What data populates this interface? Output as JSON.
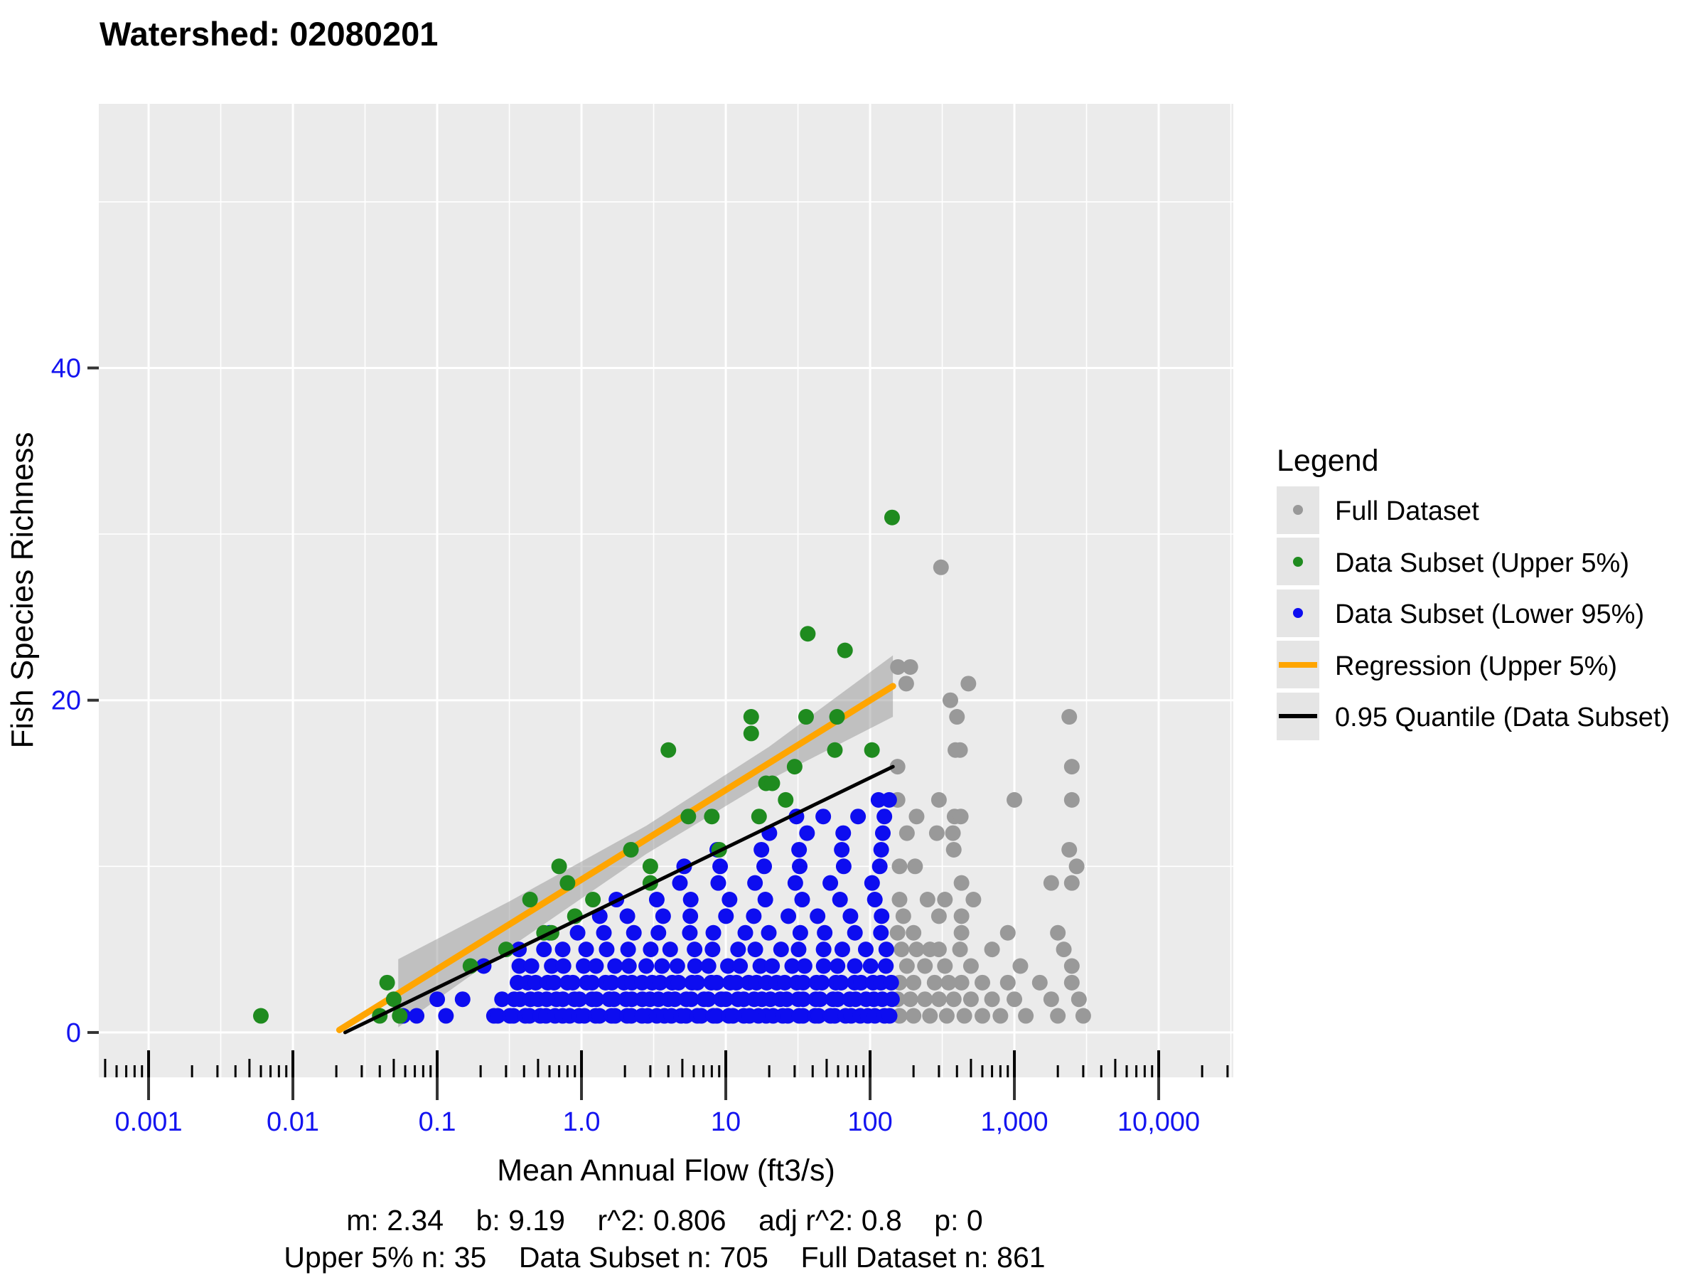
{
  "header": {
    "title": "Watershed: 02080201"
  },
  "legend": {
    "title": "Legend",
    "items": [
      {
        "label": "Full Dataset",
        "type": "point",
        "color": "#999999"
      },
      {
        "label": "Data Subset (Upper 5%)",
        "type": "point",
        "color": "#1F8B1F"
      },
      {
        "label": "Data Subset (Lower 95%)",
        "type": "point",
        "color": "#0D0DF0"
      },
      {
        "label": "Regression (Upper 5%)",
        "type": "line",
        "color": "#FFA500"
      },
      {
        "label": "0.95 Quantile (Data Subset)",
        "type": "line",
        "color": "#000000"
      }
    ],
    "key_background": "#E5E5E5"
  },
  "footer": {
    "stats_line1": "m: 2.34    b: 9.19    r^2: 0.806    adj r^2: 0.8    p: 0",
    "stats_line2": "Upper 5% n: 35    Data Subset n: 705    Full Dataset n: 861"
  },
  "chart_data": {
    "type": "scatter",
    "title": "Watershed: 02080201",
    "xlabel": "Mean Annual Flow (ft3/s)",
    "ylabel": "Fish Species Richness",
    "x_scale": "log10",
    "x_range_log": [
      -3.345,
      4.517
    ],
    "y_range": [
      -2.7,
      55.9
    ],
    "x_ticks": [
      {
        "v": 0.001,
        "label": "0.001"
      },
      {
        "v": 0.01,
        "label": "0.01"
      },
      {
        "v": 0.1,
        "label": "0.1"
      },
      {
        "v": 1,
        "label": "1.0"
      },
      {
        "v": 10,
        "label": "10"
      },
      {
        "v": 100,
        "label": "100"
      },
      {
        "v": 1000,
        "label": "1,000"
      },
      {
        "v": 10000,
        "label": "10,000"
      }
    ],
    "y_ticks": [
      {
        "v": 0,
        "label": "0"
      },
      {
        "v": 20,
        "label": "20"
      },
      {
        "v": 40,
        "label": "40"
      }
    ],
    "y_minor": [
      10,
      30,
      50
    ],
    "panel_color": "#EBEBEB",
    "grid_color": "#FFFFFF",
    "axis_text_color": "#1414F0",
    "series": [
      {
        "name": "Full Dataset",
        "color": "#999999",
        "points": [
          [
            310,
            28
          ],
          [
            156,
            22
          ],
          [
            190,
            22
          ],
          [
            178,
            21
          ],
          [
            480,
            21
          ],
          [
            360,
            20
          ],
          [
            400,
            19
          ],
          [
            2400,
            19
          ],
          [
            390,
            17
          ],
          [
            420,
            17
          ],
          [
            155,
            16
          ],
          [
            2500,
            16
          ],
          [
            155,
            14
          ],
          [
            300,
            14
          ],
          [
            1000,
            14
          ],
          [
            2500,
            14
          ],
          [
            210,
            13
          ],
          [
            385,
            13
          ],
          [
            425,
            13
          ],
          [
            180,
            12
          ],
          [
            290,
            12
          ],
          [
            375,
            12
          ],
          [
            380,
            11
          ],
          [
            2400,
            11
          ],
          [
            160,
            10
          ],
          [
            205,
            10
          ],
          [
            2700,
            10
          ],
          [
            430,
            9
          ],
          [
            1800,
            9
          ],
          [
            2500,
            9
          ],
          [
            160,
            8
          ],
          [
            250,
            8
          ],
          [
            330,
            8
          ],
          [
            520,
            8
          ],
          [
            170,
            7
          ],
          [
            300,
            7
          ],
          [
            430,
            7
          ],
          [
            155,
            6
          ],
          [
            200,
            6
          ],
          [
            430,
            6
          ],
          [
            900,
            6
          ],
          [
            2000,
            6
          ],
          [
            165,
            5
          ],
          [
            210,
            5
          ],
          [
            260,
            5
          ],
          [
            300,
            5
          ],
          [
            420,
            5
          ],
          [
            700,
            5
          ],
          [
            2200,
            5
          ],
          [
            180,
            4
          ],
          [
            240,
            4
          ],
          [
            330,
            4
          ],
          [
            500,
            4
          ],
          [
            1100,
            4
          ],
          [
            2500,
            4
          ],
          [
            160,
            3
          ],
          [
            200,
            3
          ],
          [
            280,
            3
          ],
          [
            350,
            3
          ],
          [
            430,
            3
          ],
          [
            600,
            3
          ],
          [
            900,
            3
          ],
          [
            1500,
            3
          ],
          [
            2500,
            3
          ],
          [
            155,
            2
          ],
          [
            190,
            2
          ],
          [
            240,
            2
          ],
          [
            300,
            2
          ],
          [
            380,
            2
          ],
          [
            500,
            2
          ],
          [
            700,
            2
          ],
          [
            1000,
            2
          ],
          [
            1800,
            2
          ],
          [
            2800,
            2
          ],
          [
            160,
            1
          ],
          [
            200,
            1
          ],
          [
            260,
            1
          ],
          [
            340,
            1
          ],
          [
            450,
            1
          ],
          [
            600,
            1
          ],
          [
            800,
            1
          ],
          [
            1200,
            1
          ],
          [
            2000,
            1
          ],
          [
            3000,
            1
          ]
        ]
      },
      {
        "name": "Data Subset (Upper 5%)",
        "color": "#1F8B1F",
        "points": [
          [
            0.006,
            1
          ],
          [
            0.04,
            1
          ],
          [
            0.045,
            3
          ],
          [
            0.05,
            2
          ],
          [
            0.055,
            1
          ],
          [
            0.17,
            4
          ],
          [
            0.3,
            5
          ],
          [
            0.44,
            8
          ],
          [
            0.55,
            6
          ],
          [
            0.62,
            6
          ],
          [
            0.7,
            10
          ],
          [
            0.8,
            9
          ],
          [
            0.9,
            7
          ],
          [
            1.2,
            8
          ],
          [
            2.2,
            11
          ],
          [
            3,
            9
          ],
          [
            3,
            10
          ],
          [
            4,
            17
          ],
          [
            5.5,
            13
          ],
          [
            8,
            13
          ],
          [
            9,
            11
          ],
          [
            15,
            18
          ],
          [
            15,
            19
          ],
          [
            17,
            13
          ],
          [
            19,
            15
          ],
          [
            21,
            15
          ],
          [
            26,
            14
          ],
          [
            30,
            16
          ],
          [
            36,
            19
          ],
          [
            37,
            24
          ],
          [
            57,
            17
          ],
          [
            59,
            19
          ],
          [
            67,
            23
          ],
          [
            103,
            17
          ],
          [
            142,
            31
          ]
        ]
      },
      {
        "name": "Data Subset (Lower 95%)",
        "color": "#0D0DF0",
        "rows": [
          {
            "y": 1,
            "x1": 0.24,
            "x2": 140,
            "n": 52
          },
          {
            "y": 2,
            "x1": 0.29,
            "x2": 140,
            "n": 46
          },
          {
            "y": 3,
            "x1": 0.36,
            "x2": 140,
            "n": 40
          },
          {
            "y": 4,
            "x1": 0.36,
            "x2": 130,
            "n": 24
          },
          {
            "y": 5,
            "x1": 0.38,
            "x2": 130,
            "n": 18
          },
          {
            "y": 6,
            "x1": 0.6,
            "x2": 120,
            "n": 13
          },
          {
            "y": 7,
            "x1": 1.3,
            "x2": 120,
            "n": 10
          },
          {
            "y": 8,
            "x1": 1.8,
            "x2": 110,
            "n": 8
          },
          {
            "y": 9,
            "x1": 4.8,
            "x2": 100,
            "n": 6
          },
          {
            "y": 10,
            "x1": 5,
            "x2": 120,
            "n": 6
          },
          {
            "y": 11,
            "x1": 9,
            "x2": 120,
            "n": 5
          },
          {
            "y": 12,
            "x1": 20,
            "x2": 120,
            "n": 4
          },
          {
            "y": 13,
            "x1": 30,
            "x2": 130,
            "n": 4
          },
          {
            "y": 14,
            "x1": 118,
            "x2": 132,
            "n": 2
          }
        ],
        "points": [
          [
            0.058,
            1
          ],
          [
            0.072,
            1
          ],
          [
            0.115,
            1
          ],
          [
            0.1,
            2
          ],
          [
            0.15,
            2
          ],
          [
            0.21,
            4
          ]
        ]
      }
    ],
    "regression": {
      "name": "Regression (Upper 5%)",
      "color": "#FFA500",
      "m": 2.34,
      "b": 9.19,
      "x1": 0.021,
      "y1": 0.15,
      "x2": 144,
      "y2": 20.85
    },
    "quantile": {
      "name": "0.95 Quantile (Data Subset)",
      "color": "#000000",
      "x1": 0.023,
      "y1": 0.0,
      "x2": 144,
      "y2": 16.0
    },
    "ci_band": {
      "color": "rgba(150,150,150,0.5)",
      "anchors": [
        [
          -1.27,
          2.36,
          2.05
        ],
        [
          -0.5,
          6.49,
          1.4
        ],
        [
          0.45,
          11.6,
          0.85
        ],
        [
          1.3,
          16.2,
          1.0
        ],
        [
          2.158,
          20.85,
          1.85
        ]
      ]
    }
  }
}
